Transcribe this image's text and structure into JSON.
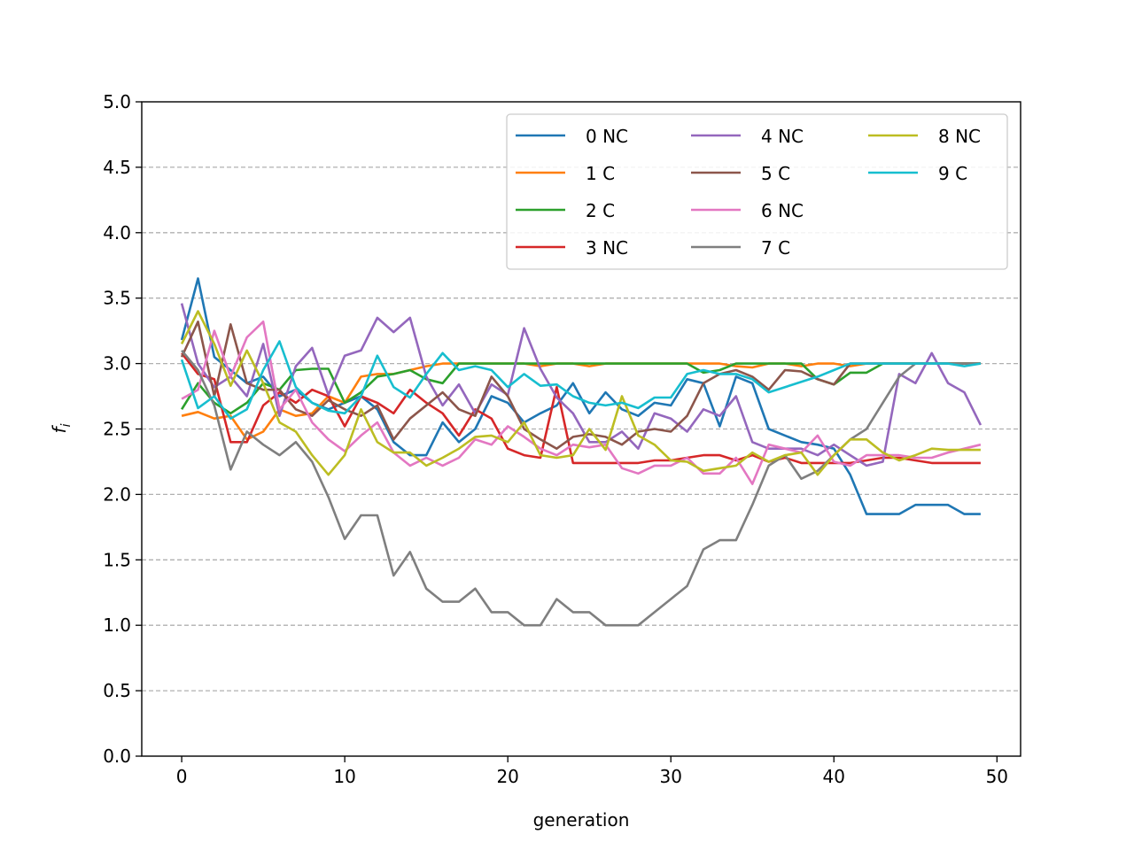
{
  "chart_data": {
    "type": "line",
    "title": "",
    "xlabel": "generation",
    "ylabel_main": "f",
    "ylabel_sub": "i",
    "xlim": [
      -2.45,
      51.45
    ],
    "ylim": [
      0,
      5
    ],
    "xticks": [
      0,
      10,
      20,
      30,
      40,
      50
    ],
    "yticks": [
      0.0,
      0.5,
      1.0,
      1.5,
      2.0,
      2.5,
      3.0,
      3.5,
      4.0,
      4.5,
      5.0
    ],
    "ytick_labels": [
      "0.0",
      "0.5",
      "1.0",
      "1.5",
      "2.0",
      "2.5",
      "3.0",
      "3.5",
      "4.0",
      "4.5",
      "5.0"
    ],
    "grid": "y-dashed",
    "legend": {
      "position": "top-right",
      "columns": 3
    },
    "x": [
      0,
      1,
      2,
      3,
      4,
      5,
      6,
      7,
      8,
      9,
      10,
      11,
      12,
      13,
      14,
      15,
      16,
      17,
      18,
      19,
      20,
      21,
      22,
      23,
      24,
      25,
      26,
      27,
      28,
      29,
      30,
      31,
      32,
      33,
      34,
      35,
      36,
      37,
      38,
      39,
      40,
      41,
      42,
      43,
      44,
      45,
      46,
      47,
      48,
      49
    ],
    "series": [
      {
        "name": "0 NC",
        "color": "#1f77b4",
        "values": [
          3.18,
          3.65,
          3.05,
          2.95,
          2.85,
          2.9,
          2.75,
          2.8,
          2.7,
          2.65,
          2.7,
          2.75,
          2.65,
          2.4,
          2.3,
          2.3,
          2.55,
          2.4,
          2.5,
          2.75,
          2.7,
          2.55,
          2.62,
          2.68,
          2.85,
          2.62,
          2.78,
          2.65,
          2.6,
          2.7,
          2.68,
          2.88,
          2.85,
          2.52,
          2.9,
          2.85,
          2.5,
          2.45,
          2.4,
          2.38,
          2.35,
          2.15,
          1.85,
          1.85,
          1.85,
          1.92,
          1.92,
          1.92,
          1.85,
          1.85
        ]
      },
      {
        "name": "1 C",
        "color": "#ff7f0e",
        "values": [
          2.6,
          2.63,
          2.58,
          2.6,
          2.42,
          2.48,
          2.65,
          2.6,
          2.62,
          2.75,
          2.7,
          2.9,
          2.92,
          2.92,
          2.95,
          2.98,
          3.0,
          3.0,
          3.0,
          3.0,
          3.0,
          3.0,
          2.98,
          3.0,
          3.0,
          2.98,
          3.0,
          3.0,
          3.0,
          3.0,
          3.0,
          3.0,
          3.0,
          3.0,
          2.98,
          2.97,
          3.0,
          3.0,
          2.98,
          3.0,
          3.0,
          2.98,
          3.0,
          3.0,
          3.0,
          3.0,
          3.0,
          3.0,
          3.0,
          3.0
        ]
      },
      {
        "name": "2 C",
        "color": "#2ca02c",
        "values": [
          2.65,
          2.85,
          2.7,
          2.62,
          2.7,
          2.85,
          2.8,
          2.95,
          2.96,
          2.96,
          2.7,
          2.78,
          2.9,
          2.92,
          2.95,
          2.88,
          2.85,
          3.0,
          3.0,
          3.0,
          3.0,
          3.0,
          3.0,
          3.0,
          3.0,
          3.0,
          3.0,
          3.0,
          3.0,
          3.0,
          3.0,
          3.0,
          2.93,
          2.95,
          3.0,
          3.0,
          3.0,
          3.0,
          3.0,
          2.88,
          2.84,
          2.93,
          2.93,
          3.0,
          3.0,
          3.0,
          3.0,
          3.0,
          3.0,
          3.0
        ]
      },
      {
        "name": "3 NC",
        "color": "#d62728",
        "values": [
          3.08,
          2.92,
          2.88,
          2.4,
          2.4,
          2.68,
          2.78,
          2.7,
          2.8,
          2.75,
          2.52,
          2.75,
          2.7,
          2.62,
          2.8,
          2.7,
          2.62,
          2.45,
          2.65,
          2.58,
          2.35,
          2.3,
          2.28,
          2.82,
          2.24,
          2.24,
          2.24,
          2.24,
          2.24,
          2.26,
          2.26,
          2.28,
          2.3,
          2.3,
          2.26,
          2.3,
          2.25,
          2.28,
          2.24,
          2.24,
          2.24,
          2.24,
          2.26,
          2.28,
          2.28,
          2.26,
          2.24,
          2.24,
          2.24,
          2.24
        ]
      },
      {
        "name": "4 NC",
        "color": "#9467bd",
        "values": [
          3.46,
          3.0,
          2.82,
          2.9,
          2.75,
          3.15,
          2.6,
          2.98,
          3.12,
          2.76,
          3.06,
          3.1,
          3.35,
          3.24,
          3.35,
          2.9,
          2.68,
          2.84,
          2.62,
          2.84,
          2.76,
          3.27,
          2.96,
          2.74,
          2.62,
          2.4,
          2.4,
          2.48,
          2.35,
          2.62,
          2.58,
          2.48,
          2.65,
          2.6,
          2.75,
          2.4,
          2.35,
          2.35,
          2.35,
          2.3,
          2.38,
          2.3,
          2.22,
          2.25,
          2.92,
          2.85,
          3.08,
          2.85,
          2.78,
          2.53
        ]
      },
      {
        "name": "5 C",
        "color": "#8c564b",
        "values": [
          3.05,
          3.32,
          2.75,
          3.3,
          2.85,
          2.8,
          2.8,
          2.65,
          2.6,
          2.72,
          2.65,
          2.6,
          2.68,
          2.42,
          2.58,
          2.68,
          2.78,
          2.65,
          2.6,
          2.9,
          2.75,
          2.5,
          2.42,
          2.35,
          2.44,
          2.46,
          2.44,
          2.38,
          2.48,
          2.5,
          2.48,
          2.6,
          2.85,
          2.92,
          2.95,
          2.9,
          2.8,
          2.95,
          2.94,
          2.88,
          2.84,
          3.0,
          3.0,
          3.0,
          3.0,
          3.0,
          3.0,
          3.0,
          3.0,
          3.0
        ]
      },
      {
        "name": "6 NC",
        "color": "#e377c2",
        "values": [
          2.73,
          2.8,
          3.25,
          2.9,
          3.2,
          3.32,
          2.65,
          2.8,
          2.55,
          2.42,
          2.33,
          2.45,
          2.55,
          2.32,
          2.22,
          2.28,
          2.22,
          2.28,
          2.42,
          2.38,
          2.52,
          2.44,
          2.35,
          2.3,
          2.38,
          2.36,
          2.38,
          2.2,
          2.16,
          2.22,
          2.22,
          2.28,
          2.16,
          2.16,
          2.28,
          2.08,
          2.38,
          2.35,
          2.32,
          2.45,
          2.25,
          2.22,
          2.3,
          2.3,
          2.3,
          2.28,
          2.28,
          2.32,
          2.35,
          2.38
        ]
      },
      {
        "name": "7 C",
        "color": "#7f7f7f",
        "values": [
          3.1,
          2.95,
          2.68,
          2.19,
          2.48,
          2.38,
          2.3,
          2.4,
          2.25,
          1.98,
          1.66,
          1.84,
          1.84,
          1.38,
          1.56,
          1.28,
          1.18,
          1.18,
          1.28,
          1.1,
          1.1,
          1.0,
          1.0,
          1.2,
          1.1,
          1.1,
          1.0,
          1.0,
          1.0,
          1.1,
          1.2,
          1.3,
          1.58,
          1.65,
          1.65,
          1.92,
          2.22,
          2.3,
          2.12,
          2.18,
          2.3,
          2.42,
          2.5,
          2.7,
          2.9,
          3.0,
          3.0,
          3.0,
          3.0,
          3.0
        ]
      },
      {
        "name": "8 NC",
        "color": "#bcbd22",
        "values": [
          3.15,
          3.4,
          3.15,
          2.83,
          3.1,
          2.85,
          2.55,
          2.48,
          2.3,
          2.15,
          2.3,
          2.65,
          2.4,
          2.32,
          2.32,
          2.22,
          2.28,
          2.35,
          2.44,
          2.45,
          2.4,
          2.55,
          2.3,
          2.28,
          2.3,
          2.5,
          2.34,
          2.75,
          2.45,
          2.38,
          2.26,
          2.25,
          2.18,
          2.2,
          2.22,
          2.32,
          2.25,
          2.3,
          2.32,
          2.15,
          2.3,
          2.42,
          2.42,
          2.32,
          2.26,
          2.3,
          2.35,
          2.34,
          2.34,
          2.34
        ]
      },
      {
        "name": "9 C",
        "color": "#17becf",
        "values": [
          3.03,
          2.66,
          2.75,
          2.58,
          2.65,
          2.95,
          3.17,
          2.82,
          2.7,
          2.64,
          2.62,
          2.75,
          3.06,
          2.82,
          2.74,
          2.92,
          3.08,
          2.95,
          2.98,
          2.95,
          2.82,
          2.92,
          2.83,
          2.84,
          2.75,
          2.7,
          2.68,
          2.7,
          2.66,
          2.74,
          2.74,
          2.92,
          2.95,
          2.92,
          2.92,
          2.88,
          2.78,
          2.82,
          2.86,
          2.9,
          2.95,
          3.0,
          3.0,
          3.0,
          3.0,
          3.0,
          3.0,
          3.0,
          2.98,
          3.0
        ]
      }
    ]
  }
}
